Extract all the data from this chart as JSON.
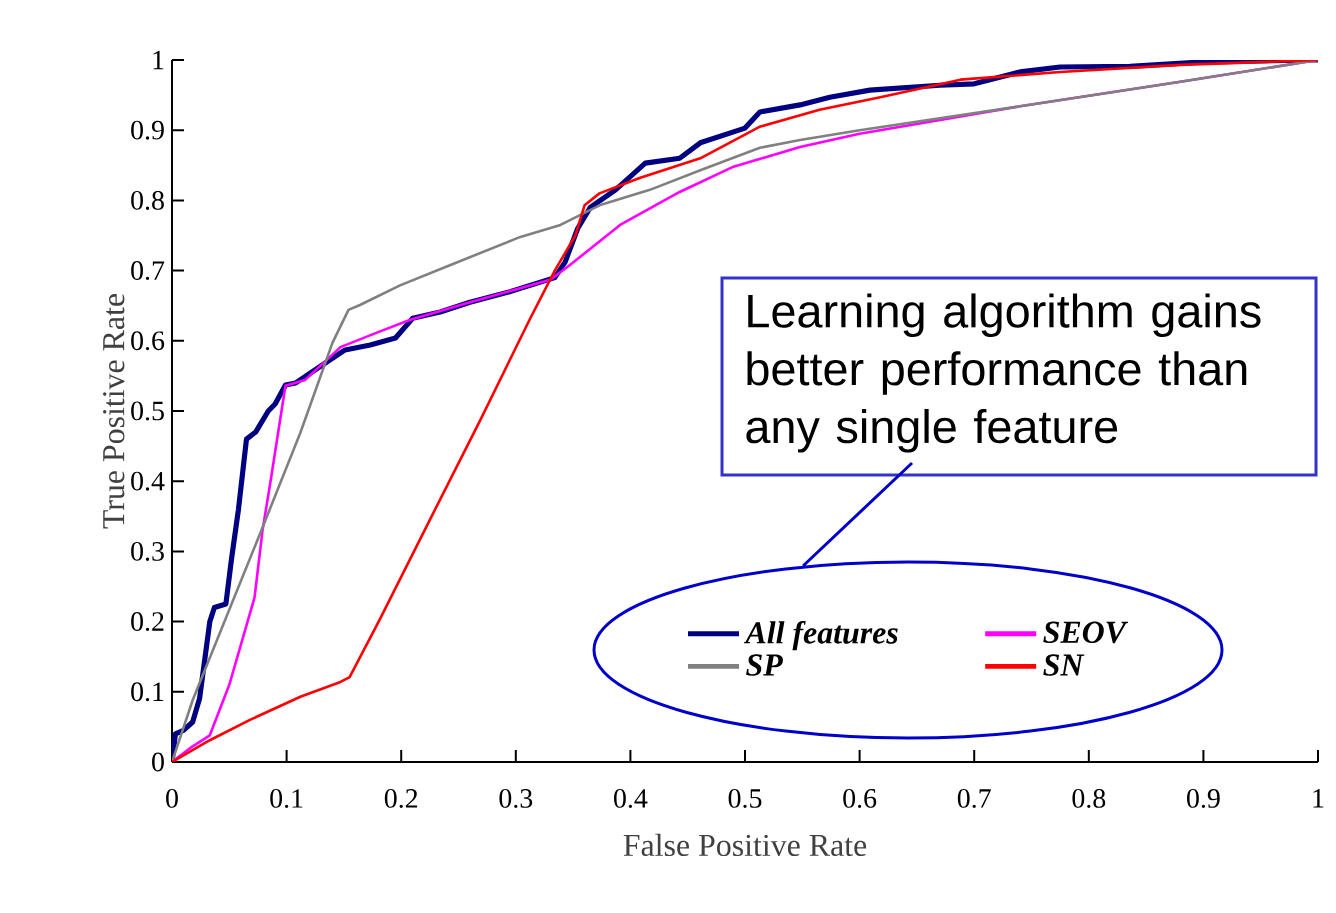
{
  "chart_data": {
    "type": "line",
    "xlabel": "False Positive Rate",
    "ylabel": "True Positive Rate",
    "xlim": [
      0,
      1
    ],
    "ylim": [
      0,
      1
    ],
    "xticks": [
      0,
      0.1,
      0.2,
      0.3,
      0.4,
      0.5,
      0.6,
      0.7,
      0.8,
      0.9,
      1
    ],
    "yticks": [
      0,
      0.1,
      0.2,
      0.3,
      0.4,
      0.5,
      0.6,
      0.7,
      0.8,
      0.9,
      1
    ],
    "grid": false,
    "legend": "bottom right",
    "marker": "none",
    "line_style": "solid",
    "annotations": [
      "Learning algorithm gains better performance than any single feature"
    ],
    "series": [
      {
        "name": "All features",
        "color": "#000080",
        "x": [
          0,
          0.003,
          0.01,
          0.018,
          0.024,
          0.033,
          0.037,
          0.047,
          0.052,
          0.058,
          0.065,
          0.073,
          0.084,
          0.09,
          0.099,
          0.108,
          0.138,
          0.151,
          0.173,
          0.195,
          0.21,
          0.234,
          0.26,
          0.295,
          0.334,
          0.343,
          0.354,
          0.365,
          0.387,
          0.413,
          0.443,
          0.461,
          0.5,
          0.513,
          0.548,
          0.574,
          0.609,
          0.67,
          0.7,
          0.74,
          0.775,
          0.836,
          0.897,
          0.993,
          1
        ],
        "values": [
          0,
          0.04,
          0.045,
          0.057,
          0.09,
          0.2,
          0.22,
          0.225,
          0.29,
          0.36,
          0.46,
          0.47,
          0.5,
          0.51,
          0.537,
          0.54,
          0.573,
          0.587,
          0.594,
          0.604,
          0.632,
          0.641,
          0.655,
          0.67,
          0.69,
          0.712,
          0.76,
          0.79,
          0.815,
          0.853,
          0.86,
          0.882,
          0.903,
          0.926,
          0.936,
          0.947,
          0.957,
          0.964,
          0.966,
          0.983,
          0.99,
          0.991,
          0.997,
          1,
          1
        ]
      },
      {
        "name": "SEOV",
        "color": "#ff00ff",
        "x": [
          0,
          0.016,
          0.033,
          0.05,
          0.072,
          0.079,
          0.086,
          0.099,
          0.116,
          0.147,
          0.181,
          0.208,
          0.26,
          0.33,
          0.345,
          0.391,
          0.443,
          0.49,
          0.548,
          0.6,
          0.74,
          0.88,
          1
        ],
        "values": [
          0,
          0.02,
          0.038,
          0.11,
          0.234,
          0.33,
          0.4,
          0.536,
          0.544,
          0.591,
          0.613,
          0.63,
          0.655,
          0.687,
          0.705,
          0.765,
          0.812,
          0.848,
          0.876,
          0.895,
          0.934,
          0.969,
          1
        ]
      },
      {
        "name": "SP",
        "color": "#808080",
        "x": [
          0,
          0.018,
          0.077,
          0.112,
          0.14,
          0.154,
          0.164,
          0.199,
          0.243,
          0.304,
          0.339,
          0.373,
          0.417,
          0.461,
          0.513,
          0.548,
          0.6,
          0.74,
          0.88,
          1
        ],
        "values": [
          0,
          0.088,
          0.326,
          0.469,
          0.597,
          0.644,
          0.651,
          0.679,
          0.708,
          0.748,
          0.765,
          0.793,
          0.815,
          0.843,
          0.875,
          0.886,
          0.9,
          0.934,
          0.969,
          1
        ]
      },
      {
        "name": "SN",
        "color": "#ff0000",
        "x": [
          0,
          0.033,
          0.068,
          0.112,
          0.147,
          0.155,
          0.181,
          0.225,
          0.269,
          0.312,
          0.334,
          0.352,
          0.36,
          0.373,
          0.408,
          0.461,
          0.513,
          0.565,
          0.618,
          0.688,
          0.775,
          0.88,
          1
        ],
        "values": [
          0,
          0.031,
          0.06,
          0.093,
          0.114,
          0.121,
          0.202,
          0.345,
          0.487,
          0.63,
          0.7,
          0.75,
          0.793,
          0.81,
          0.832,
          0.86,
          0.905,
          0.929,
          0.947,
          0.972,
          0.983,
          0.993,
          1
        ]
      }
    ]
  }
}
